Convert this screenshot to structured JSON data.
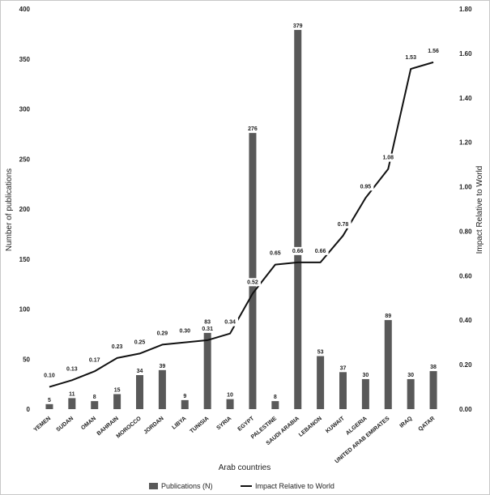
{
  "chart_data": {
    "type": "bar+line",
    "title": "",
    "xlabel": "Arab countries",
    "ylabel_left": "Number of publications",
    "ylabel_right": "Impact Relative to World",
    "ylim_left": [
      0,
      400
    ],
    "ylim_right": [
      0,
      1.8
    ],
    "yticks_left": [
      "0",
      "50",
      "100",
      "150",
      "200",
      "250",
      "300",
      "350",
      "400"
    ],
    "yticks_right": [
      "0.00",
      "0.20",
      "0.40",
      "0.60",
      "0.80",
      "1.00",
      "1.20",
      "1.40",
      "1.60",
      "1.80"
    ],
    "grid": false,
    "legend_position": "bottom",
    "categories": [
      "YEMEN",
      "SUDAN",
      "OMAN",
      "BAHRAIN",
      "MOROCCO",
      "JORDAN",
      "LIBYA",
      "TUNISIA",
      "SYRIA",
      "EGYPT",
      "PALESTINE",
      "SAUDI ARABIA",
      "LEBANON",
      "KUWAIT",
      "ALGERIA",
      "UNITED ARAB EMIRATES",
      "IRAQ",
      "QATAR"
    ],
    "series": [
      {
        "name": "Publications (N)",
        "type": "bar",
        "axis": "left",
        "color": "#595959",
        "values": [
          5,
          11,
          8,
          15,
          34,
          39,
          9,
          83,
          10,
          276,
          8,
          379,
          53,
          37,
          30,
          89,
          30,
          38
        ],
        "labels": [
          "5",
          "11",
          "8",
          "15",
          "34",
          "39",
          "9",
          "83",
          "10",
          "276",
          "8",
          "379",
          "53",
          "37",
          "30",
          "89",
          "30",
          "38"
        ]
      },
      {
        "name": "Impact Relative to World",
        "type": "line",
        "axis": "right",
        "color": "#111111",
        "values": [
          0.1,
          0.13,
          0.17,
          0.23,
          0.25,
          0.29,
          0.3,
          0.31,
          0.34,
          0.52,
          0.65,
          0.66,
          0.66,
          0.78,
          0.95,
          1.08,
          1.53,
          1.56
        ],
        "labels": [
          "0.10",
          "0.13",
          "0.17",
          "0.23",
          "0.25",
          "0.29",
          "0.30",
          "0.31",
          "0.34",
          "0.52",
          "0.65",
          "0.66",
          "0.66",
          "0.78",
          "0.95",
          "1.08",
          "1.53",
          "1.56"
        ]
      }
    ]
  }
}
